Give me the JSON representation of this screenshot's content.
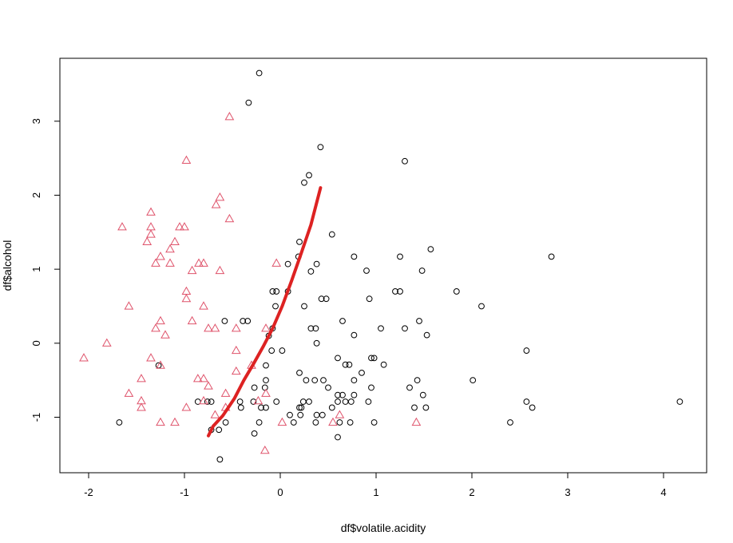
{
  "chart_data": {
    "type": "scatter",
    "xlabel": "df$volatile.acidity",
    "ylabel": "df$alcohol",
    "xlim": [
      -2.3,
      4.45
    ],
    "ylim": [
      -1.75,
      3.85
    ],
    "x_ticks": [
      -2,
      -1,
      0,
      1,
      2,
      3,
      4
    ],
    "y_ticks": [
      -1,
      0,
      1,
      2,
      3
    ],
    "grid": false,
    "legend": "none",
    "colors": {
      "circles": "#000000",
      "triangles": "#DF536B",
      "curve": "#DD2222"
    },
    "series": [
      {
        "marker": "circle",
        "points": [
          [
            -0.22,
            3.65
          ],
          [
            -0.33,
            3.25
          ],
          [
            0.42,
            2.65
          ],
          [
            1.3,
            2.46
          ],
          [
            0.3,
            2.27
          ],
          [
            0.25,
            2.17
          ],
          [
            0.54,
            1.47
          ],
          [
            0.2,
            1.37
          ],
          [
            1.57,
            1.27
          ],
          [
            0.19,
            1.17
          ],
          [
            0.77,
            1.17
          ],
          [
            1.25,
            1.17
          ],
          [
            2.83,
            1.17
          ],
          [
            0.08,
            1.07
          ],
          [
            0.38,
            1.07
          ],
          [
            0.32,
            0.97
          ],
          [
            0.9,
            0.98
          ],
          [
            1.48,
            0.98
          ],
          [
            -0.08,
            0.7
          ],
          [
            -0.04,
            0.7
          ],
          [
            0.08,
            0.7
          ],
          [
            1.2,
            0.7
          ],
          [
            1.25,
            0.7
          ],
          [
            1.84,
            0.7
          ],
          [
            0.43,
            0.6
          ],
          [
            0.48,
            0.6
          ],
          [
            0.93,
            0.6
          ],
          [
            -0.05,
            0.5
          ],
          [
            0.25,
            0.5
          ],
          [
            2.1,
            0.5
          ],
          [
            -0.58,
            0.3
          ],
          [
            -0.39,
            0.3
          ],
          [
            -0.34,
            0.3
          ],
          [
            0.65,
            0.3
          ],
          [
            1.45,
            0.3
          ],
          [
            -0.08,
            0.2
          ],
          [
            -0.12,
            0.1
          ],
          [
            0.32,
            0.2
          ],
          [
            0.37,
            0.2
          ],
          [
            1.05,
            0.2
          ],
          [
            1.3,
            0.2
          ],
          [
            0.77,
            0.11
          ],
          [
            1.53,
            0.11
          ],
          [
            0.38,
            0.0
          ],
          [
            -0.09,
            -0.1
          ],
          [
            0.02,
            -0.1
          ],
          [
            2.57,
            -0.1
          ],
          [
            0.6,
            -0.2
          ],
          [
            0.95,
            -0.2
          ],
          [
            0.98,
            -0.2
          ],
          [
            0.68,
            -0.29
          ],
          [
            0.72,
            -0.29
          ],
          [
            1.08,
            -0.29
          ],
          [
            -1.27,
            -0.3
          ],
          [
            -0.15,
            -0.3
          ],
          [
            0.2,
            -0.4
          ],
          [
            0.85,
            -0.4
          ],
          [
            -0.15,
            -0.5
          ],
          [
            0.27,
            -0.5
          ],
          [
            0.36,
            -0.5
          ],
          [
            0.45,
            -0.5
          ],
          [
            0.77,
            -0.5
          ],
          [
            1.43,
            -0.5
          ],
          [
            2.01,
            -0.5
          ],
          [
            -0.27,
            -0.6
          ],
          [
            -0.16,
            -0.6
          ],
          [
            0.5,
            -0.6
          ],
          [
            0.95,
            -0.6
          ],
          [
            1.35,
            -0.6
          ],
          [
            0.6,
            -0.7
          ],
          [
            0.65,
            -0.7
          ],
          [
            0.77,
            -0.7
          ],
          [
            1.49,
            -0.7
          ],
          [
            -0.86,
            -0.79
          ],
          [
            -0.76,
            -0.79
          ],
          [
            -0.72,
            -0.79
          ],
          [
            -0.42,
            -0.79
          ],
          [
            -0.28,
            -0.79
          ],
          [
            -0.04,
            -0.79
          ],
          [
            0.24,
            -0.79
          ],
          [
            0.3,
            -0.79
          ],
          [
            0.6,
            -0.79
          ],
          [
            0.68,
            -0.79
          ],
          [
            0.74,
            -0.79
          ],
          [
            0.92,
            -0.79
          ],
          [
            2.57,
            -0.79
          ],
          [
            4.17,
            -0.79
          ],
          [
            -0.41,
            -0.87
          ],
          [
            -0.2,
            -0.87
          ],
          [
            -0.15,
            -0.87
          ],
          [
            0.2,
            -0.87
          ],
          [
            0.22,
            -0.87
          ],
          [
            0.54,
            -0.87
          ],
          [
            1.4,
            -0.87
          ],
          [
            1.52,
            -0.87
          ],
          [
            2.63,
            -0.87
          ],
          [
            0.1,
            -0.97
          ],
          [
            0.21,
            -0.97
          ],
          [
            0.38,
            -0.97
          ],
          [
            0.44,
            -0.97
          ],
          [
            -1.68,
            -1.07
          ],
          [
            -0.57,
            -1.07
          ],
          [
            -0.22,
            -1.07
          ],
          [
            0.14,
            -1.07
          ],
          [
            0.37,
            -1.07
          ],
          [
            0.62,
            -1.07
          ],
          [
            0.73,
            -1.07
          ],
          [
            0.98,
            -1.07
          ],
          [
            2.4,
            -1.07
          ],
          [
            -0.72,
            -1.17
          ],
          [
            -0.64,
            -1.17
          ],
          [
            -0.27,
            -1.22
          ],
          [
            0.6,
            -1.27
          ],
          [
            -0.63,
            -1.57
          ]
        ]
      },
      {
        "marker": "triangle",
        "points": [
          [
            -0.53,
            3.06
          ],
          [
            -0.98,
            2.47
          ],
          [
            -0.63,
            1.97
          ],
          [
            -0.67,
            1.87
          ],
          [
            -0.53,
            1.68
          ],
          [
            -1.35,
            1.77
          ],
          [
            -1.65,
            1.57
          ],
          [
            -1.35,
            1.57
          ],
          [
            -1.05,
            1.57
          ],
          [
            -1.0,
            1.57
          ],
          [
            -1.35,
            1.47
          ],
          [
            -1.39,
            1.37
          ],
          [
            -1.1,
            1.37
          ],
          [
            -1.15,
            1.27
          ],
          [
            -1.25,
            1.17
          ],
          [
            -1.3,
            1.08
          ],
          [
            -1.15,
            1.08
          ],
          [
            -0.85,
            1.08
          ],
          [
            -0.8,
            1.08
          ],
          [
            -0.92,
            0.98
          ],
          [
            -0.63,
            0.98
          ],
          [
            -0.04,
            1.08
          ],
          [
            -0.98,
            0.7
          ],
          [
            -0.98,
            0.6
          ],
          [
            -1.58,
            0.5
          ],
          [
            -0.8,
            0.5
          ],
          [
            -1.25,
            0.3
          ],
          [
            -0.92,
            0.3
          ],
          [
            -1.3,
            0.2
          ],
          [
            -0.75,
            0.2
          ],
          [
            -0.68,
            0.2
          ],
          [
            -0.46,
            0.2
          ],
          [
            -0.15,
            0.2
          ],
          [
            -1.2,
            0.11
          ],
          [
            -1.81,
            0.0
          ],
          [
            -0.46,
            -0.1
          ],
          [
            -2.05,
            -0.2
          ],
          [
            -1.35,
            -0.2
          ],
          [
            -1.25,
            -0.3
          ],
          [
            -0.3,
            -0.3
          ],
          [
            -0.46,
            -0.38
          ],
          [
            -1.45,
            -0.48
          ],
          [
            -0.86,
            -0.48
          ],
          [
            -0.8,
            -0.48
          ],
          [
            -0.75,
            -0.58
          ],
          [
            -1.58,
            -0.68
          ],
          [
            -0.57,
            -0.68
          ],
          [
            -0.15,
            -0.68
          ],
          [
            -1.45,
            -0.78
          ],
          [
            -0.8,
            -0.78
          ],
          [
            -0.23,
            -0.78
          ],
          [
            -1.45,
            -0.87
          ],
          [
            -0.98,
            -0.87
          ],
          [
            -0.57,
            -0.87
          ],
          [
            -0.68,
            -0.97
          ],
          [
            0.62,
            -0.97
          ],
          [
            -1.25,
            -1.07
          ],
          [
            -1.1,
            -1.07
          ],
          [
            0.02,
            -1.07
          ],
          [
            0.55,
            -1.07
          ],
          [
            1.42,
            -1.07
          ],
          [
            -0.16,
            -1.45
          ]
        ]
      },
      {
        "marker": "line",
        "points": [
          [
            -0.75,
            -1.25
          ],
          [
            -0.7,
            -1.12
          ],
          [
            -0.6,
            -0.98
          ],
          [
            -0.48,
            -0.75
          ],
          [
            -0.38,
            -0.5
          ],
          [
            -0.28,
            -0.28
          ],
          [
            -0.18,
            -0.05
          ],
          [
            -0.08,
            0.2
          ],
          [
            0.02,
            0.5
          ],
          [
            0.12,
            0.85
          ],
          [
            0.22,
            1.22
          ],
          [
            0.32,
            1.6
          ],
          [
            0.42,
            2.1
          ]
        ]
      }
    ]
  }
}
